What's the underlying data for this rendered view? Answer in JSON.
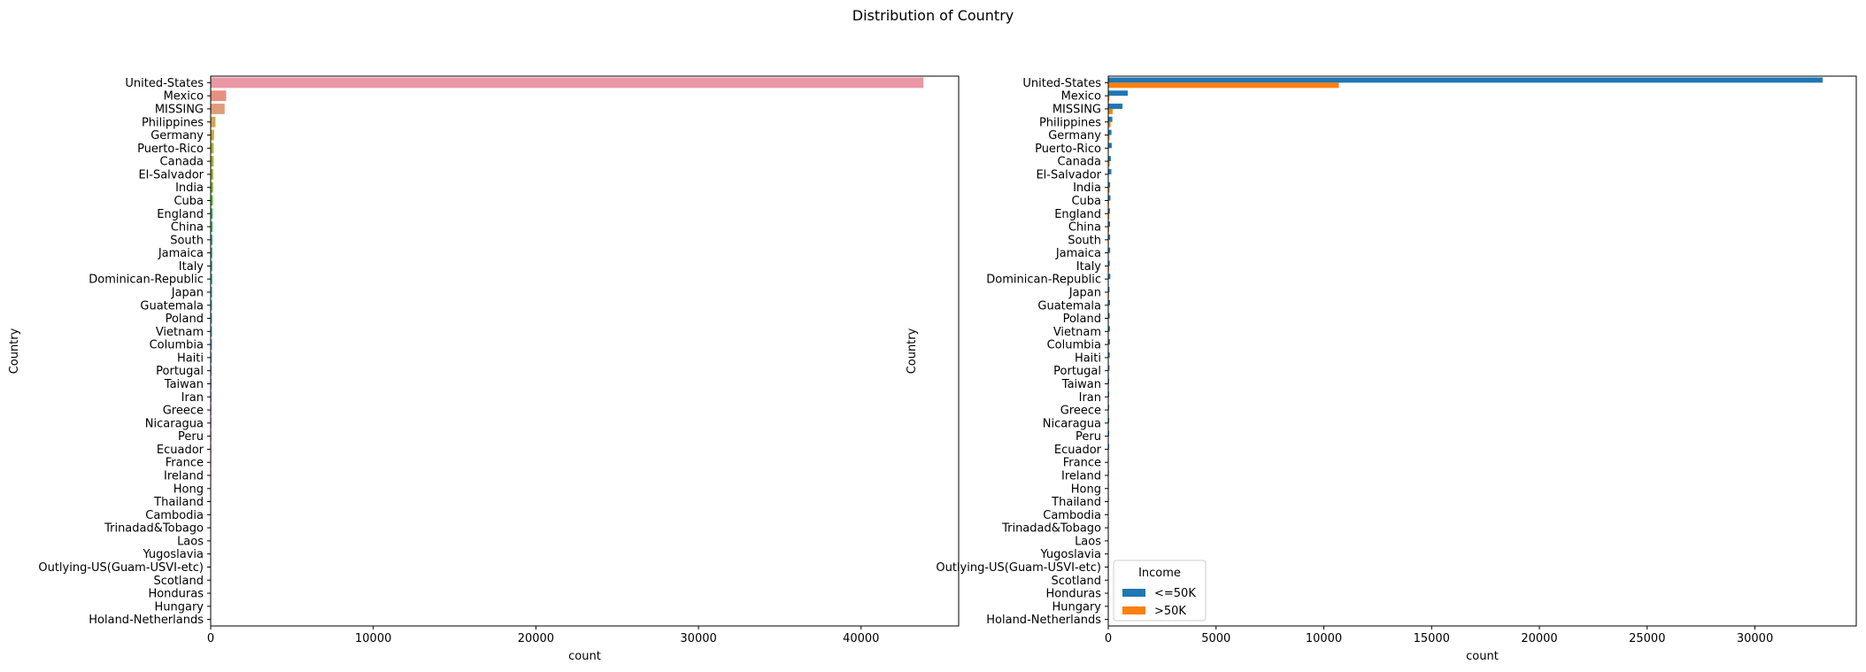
{
  "suptitle": "Distribution of Country",
  "chart_data": [
    {
      "type": "bar",
      "orientation": "horizontal",
      "xlabel": "count",
      "ylabel": "Country",
      "xlim": [
        0,
        46000
      ],
      "xticks": [
        0,
        10000,
        20000,
        30000,
        40000
      ],
      "xtick_labels": [
        "0",
        "10000",
        "20000",
        "30000",
        "40000"
      ],
      "categories": [
        "United-States",
        "Mexico",
        "MISSING",
        "Philippines",
        "Germany",
        "Puerto-Rico",
        "Canada",
        "El-Salvador",
        "India",
        "Cuba",
        "England",
        "China",
        "South",
        "Jamaica",
        "Italy",
        "Dominican-Republic",
        "Japan",
        "Guatemala",
        "Poland",
        "Vietnam",
        "Columbia",
        "Haiti",
        "Portugal",
        "Taiwan",
        "Iran",
        "Greece",
        "Nicaragua",
        "Peru",
        "Ecuador",
        "France",
        "Ireland",
        "Hong",
        "Thailand",
        "Cambodia",
        "Trinadad&Tobago",
        "Laos",
        "Yugoslavia",
        "Outlying-US(Guam-USVI-etc)",
        "Scotland",
        "Honduras",
        "Hungary",
        "Holand-Netherlands"
      ],
      "values": [
        43832,
        951,
        857,
        295,
        206,
        184,
        182,
        155,
        151,
        138,
        127,
        122,
        115,
        106,
        105,
        103,
        92,
        88,
        87,
        86,
        85,
        75,
        67,
        65,
        59,
        49,
        49,
        46,
        45,
        38,
        37,
        30,
        30,
        28,
        27,
        23,
        23,
        23,
        21,
        20,
        19,
        1
      ],
      "colors": [
        "#ea96a3",
        "#e8907f",
        "#df9d75",
        "#d4a44f",
        "#c5a936",
        "#b6ae31",
        "#a5b131",
        "#91b532",
        "#7bb932",
        "#59bd33",
        "#34bd50",
        "#35bb6d",
        "#36b982",
        "#36b791",
        "#37b69d",
        "#38b5a9",
        "#38b3b4",
        "#39b2c0",
        "#3ab0cc",
        "#3cadda",
        "#4ca8ea",
        "#6fa1f0",
        "#8e9af2",
        "#a593f2",
        "#b98ef0",
        "#cc89ee",
        "#dd82ec",
        "#eb7fe3",
        "#f17fd5",
        "#f485c7",
        "#f58cbb",
        "#f592b0",
        "#f598a5",
        "#f59d9b",
        "#f4a391",
        "#f2a98a",
        "#eea689",
        "#e9a689",
        "#e6a98a",
        "#e2ab8c",
        "#dfac8d",
        "#dcad8f"
      ]
    },
    {
      "type": "bar",
      "orientation": "horizontal",
      "xlabel": "count",
      "ylabel": "Country",
      "xlim": [
        0,
        34700
      ],
      "xticks": [
        0,
        5000,
        10000,
        15000,
        20000,
        25000,
        30000
      ],
      "xtick_labels": [
        "0",
        "5000",
        "10000",
        "15000",
        "20000",
        "25000",
        "30000"
      ],
      "legend": {
        "title": "Income",
        "position": "lower-left"
      },
      "categories": [
        "United-States",
        "Mexico",
        "MISSING",
        "Philippines",
        "Germany",
        "Puerto-Rico",
        "Canada",
        "El-Salvador",
        "India",
        "Cuba",
        "England",
        "China",
        "South",
        "Jamaica",
        "Italy",
        "Dominican-Republic",
        "Japan",
        "Guatemala",
        "Poland",
        "Vietnam",
        "Columbia",
        "Haiti",
        "Portugal",
        "Taiwan",
        "Iran",
        "Greece",
        "Nicaragua",
        "Peru",
        "Ecuador",
        "France",
        "Ireland",
        "Hong",
        "Thailand",
        "Cambodia",
        "Trinadad&Tobago",
        "Laos",
        "Yugoslavia",
        "Outlying-US(Guam-USVI-etc)",
        "Scotland",
        "Honduras",
        "Hungary",
        "Holand-Netherlands"
      ],
      "series": [
        {
          "name": "<=50K",
          "color": "#1f77b4",
          "values": [
            33138,
            903,
            658,
            188,
            149,
            161,
            119,
            144,
            89,
            103,
            80,
            85,
            87,
            89,
            69,
            97,
            59,
            83,
            67,
            78,
            80,
            67,
            56,
            41,
            41,
            36,
            43,
            42,
            41,
            24,
            29,
            24,
            25,
            18,
            25,
            21,
            16,
            23,
            17,
            17,
            13,
            1
          ]
        },
        {
          "name": ">50K",
          "color": "#ff7f0e",
          "values": [
            10694,
            48,
            199,
            107,
            57,
            23,
            63,
            11,
            62,
            35,
            47,
            37,
            28,
            17,
            36,
            6,
            33,
            5,
            20,
            8,
            5,
            8,
            11,
            24,
            18,
            13,
            6,
            4,
            4,
            14,
            8,
            6,
            5,
            10,
            2,
            2,
            7,
            0,
            4,
            3,
            6,
            0
          ]
        }
      ]
    }
  ]
}
